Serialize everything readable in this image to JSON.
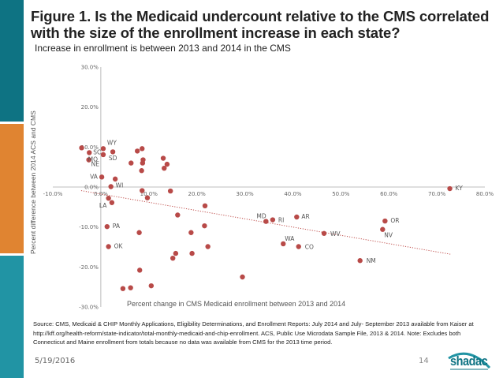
{
  "slide": {
    "title": "Figure 1. Is the Medicaid undercount relative to the CMS correlated with the size of the enrollment increase in each state?",
    "subtitle": "Increase in enrollment is between 2013 and 2014 in the CMS",
    "source_note": "Source: CMS, Medicaid & CHIP Monthly Applications, Eligibility Determinations, and Enrollment Reports: July 2014 and July- September 2013 available from Kaiser at  http://kff.org/health-reform/state-indicator/total-monthly-medicaid-and-chip-enrollment.  ACS, Public Use Microdata Sample File, 2013 & 2014. Note: Excludes both Connecticut and Maine enrollment from totals because no data was available from CMS for the 2013 time period.",
    "date": "5/19/2016",
    "page_number": "14",
    "logo_text": "shadac",
    "colors": {
      "stripe_top": "#0e7383",
      "stripe_mid": "#e08431",
      "stripe_bottom": "#2194a4",
      "point": "#b84a48",
      "trendline": "#c0504d"
    }
  },
  "chart_data": {
    "type": "scatter",
    "title": "",
    "xlabel": "Percent change in CMS Medicaid enrollment between 2013 and 2014",
    "ylabel": "Percent difference between 2014 ACS and  CMS",
    "xlim": [
      -10,
      80
    ],
    "ylim": [
      -30,
      30
    ],
    "x_ticks": [
      -10,
      0,
      10,
      20,
      30,
      40,
      50,
      60,
      70,
      80
    ],
    "x_tick_labels": [
      "-10.0%",
      "0.0%",
      "10.0%",
      "20.0%",
      "30.0%",
      "40.0%",
      "50.0%",
      "60.0%",
      "70.0%",
      "80.0%"
    ],
    "y_ticks": [
      30,
      20,
      10,
      0,
      -10,
      -20,
      -30
    ],
    "y_tick_labels": [
      "30.0%",
      "20.0%",
      "10.0%",
      "0.0%",
      "-10.0%",
      "-20.0%",
      "-30.0%"
    ],
    "grid": false,
    "legend": "none",
    "trendline": {
      "type": "linear",
      "style": "dotted",
      "x": [
        -4.1,
        72.8
      ],
      "y": [
        -0.9,
        -16.8
      ]
    },
    "points": [
      {
        "x": -4.0,
        "y": 9.8,
        "label": ""
      },
      {
        "x": -2.4,
        "y": 8.6,
        "label": "SC"
      },
      {
        "x": 0.5,
        "y": 9.6,
        "label": "WY"
      },
      {
        "x": 2.5,
        "y": 8.8,
        "label": ""
      },
      {
        "x": 0.5,
        "y": 8.1,
        "label": "SD"
      },
      {
        "x": -2.5,
        "y": 6.8,
        "label": "MO"
      },
      {
        "x": -2.5,
        "y": 6.8,
        "label": "NE"
      },
      {
        "x": 7.6,
        "y": 9.0,
        "label": ""
      },
      {
        "x": 8.6,
        "y": 9.6,
        "label": ""
      },
      {
        "x": 6.3,
        "y": 6.0,
        "label": ""
      },
      {
        "x": 8.8,
        "y": 6.8,
        "label": ""
      },
      {
        "x": 8.7,
        "y": 6.0,
        "label": ""
      },
      {
        "x": 8.5,
        "y": 4.1,
        "label": ""
      },
      {
        "x": 13.0,
        "y": 7.2,
        "label": ""
      },
      {
        "x": 13.8,
        "y": 5.7,
        "label": ""
      },
      {
        "x": 13.2,
        "y": 4.7,
        "label": ""
      },
      {
        "x": 0.2,
        "y": 2.5,
        "label": "VA"
      },
      {
        "x": 3.0,
        "y": 2.0,
        "label": ""
      },
      {
        "x": 2.1,
        "y": 0.1,
        "label": "WI"
      },
      {
        "x": 8.6,
        "y": -0.9,
        "label": ""
      },
      {
        "x": 14.5,
        "y": -1.0,
        "label": ""
      },
      {
        "x": 9.7,
        "y": -2.7,
        "label": ""
      },
      {
        "x": 1.6,
        "y": -2.8,
        "label": ""
      },
      {
        "x": 2.3,
        "y": -3.9,
        "label": "LA"
      },
      {
        "x": 21.7,
        "y": -4.7,
        "label": ""
      },
      {
        "x": 16.0,
        "y": -7.0,
        "label": ""
      },
      {
        "x": 1.3,
        "y": -9.9,
        "label": "PA"
      },
      {
        "x": 21.6,
        "y": -9.7,
        "label": ""
      },
      {
        "x": 8.0,
        "y": -11.4,
        "label": ""
      },
      {
        "x": 18.8,
        "y": -11.4,
        "label": ""
      },
      {
        "x": 1.6,
        "y": -14.9,
        "label": "OK"
      },
      {
        "x": 22.3,
        "y": -14.9,
        "label": ""
      },
      {
        "x": 15.6,
        "y": -16.6,
        "label": ""
      },
      {
        "x": 19.0,
        "y": -16.6,
        "label": ""
      },
      {
        "x": 15.0,
        "y": -17.8,
        "label": ""
      },
      {
        "x": 8.1,
        "y": -20.8,
        "label": ""
      },
      {
        "x": 4.6,
        "y": -25.4,
        "label": ""
      },
      {
        "x": 6.2,
        "y": -25.2,
        "label": ""
      },
      {
        "x": 10.5,
        "y": -24.7,
        "label": ""
      },
      {
        "x": 29.5,
        "y": -22.5,
        "label": ""
      },
      {
        "x": 34.4,
        "y": -8.6,
        "label": "MD"
      },
      {
        "x": 35.8,
        "y": -8.2,
        "label": "RI"
      },
      {
        "x": 40.8,
        "y": -7.5,
        "label": "AR"
      },
      {
        "x": 46.5,
        "y": -11.6,
        "label": "WV"
      },
      {
        "x": 38.0,
        "y": -14.2,
        "label": "WA"
      },
      {
        "x": 41.2,
        "y": -14.9,
        "label": "CO"
      },
      {
        "x": 54.0,
        "y": -18.4,
        "label": "NM"
      },
      {
        "x": 59.2,
        "y": -8.5,
        "label": "OR"
      },
      {
        "x": 58.7,
        "y": -10.6,
        "label": "NV"
      },
      {
        "x": 72.7,
        "y": -0.4,
        "label": "KY"
      }
    ]
  }
}
